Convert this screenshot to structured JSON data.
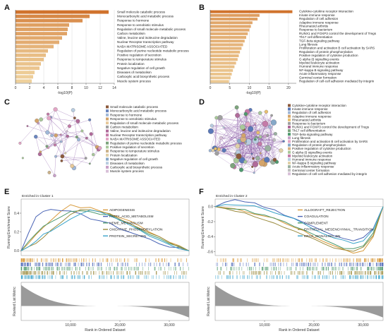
{
  "panels": {
    "A": "A",
    "B": "B",
    "C": "C",
    "D": "D",
    "E": "E",
    "F": "F"
  },
  "chart_data": [
    {
      "panel": "A",
      "type": "bar",
      "orientation": "horizontal",
      "xlabel": "-log10(P)",
      "xlim": [
        0,
        14
      ],
      "xticks": [
        "0",
        "2",
        "4",
        "6",
        "8",
        "10",
        "12",
        "14"
      ],
      "categories": [
        "Small molecule catabolic process",
        "Monocarboxylic acid metabolic process",
        "Response to hormone",
        "Response to xenobiotic stimulus",
        "Regulation of small molecule metabolic process",
        "Carbon metabolism",
        "Valine, leucine and isoleucine degradation",
        "Nuclear Receptor transcription pathway",
        "NABA MATRISOME ASSOCIATED",
        "Regulation of purine nucleotide metabolic process",
        "Positive regulation of secretion",
        "Response to temperature stimulus",
        "Protein localization",
        "Negative regulation of cell growth",
        "Diseases of metabolism",
        "Carboxylic acid biosynthetic process",
        "Muscle system process"
      ],
      "values": [
        13.2,
        10.5,
        9.5,
        7.6,
        7.4,
        7.3,
        6.6,
        6.2,
        5.4,
        4.6,
        4.3,
        4.0,
        3.6,
        3.4,
        2.7,
        2.5,
        2.3
      ]
    },
    {
      "panel": "B",
      "type": "bar",
      "orientation": "horizontal",
      "xlabel": "-log10(P)",
      "xlim": [
        0,
        22
      ],
      "xticks": [
        "0",
        "5",
        "10",
        "15",
        "20"
      ],
      "categories": [
        "Cytokine-cytokine receptor interaction",
        "Innate immune response",
        "Regulation of cell adhesion",
        "Adaptive immune response",
        "Rheumatoid arthritis",
        "Response to bacterium",
        "RUNX1 and FOXP3 control the development of Tregs",
        "Th17 cell differentiation",
        "TGF-beta signaling pathway",
        "Lung fibrosis",
        "Proliferation and activation B cell activation by SARS",
        "Regulation of protein phosphorylation",
        "Positive regulation of cytokine production",
        "G alpha (i) signalling events",
        "Myeloid leukocyte activation",
        "Humoral immune response",
        "NF-kappa B signaling pathway",
        "Acute inflammatory response",
        "Germinal center formation",
        "Regulation of cell-cell adhesion mediated by integrin"
      ],
      "values": [
        21.0,
        12.6,
        12.1,
        10.8,
        10.4,
        10.0,
        9.6,
        9.2,
        8.8,
        8.4,
        8.0,
        7.6,
        7.3,
        7.0,
        6.6,
        6.2,
        5.8,
        5.5,
        5.2,
        4.8
      ]
    },
    {
      "panel": "E",
      "type": "line",
      "subtitle": "Enriched in Cluster 1",
      "ylabel": "Running Enrichment Score",
      "ylabel_bottom": "Ranked List Metric",
      "xlabel": "Rank in Ordered Dataset",
      "xlim": [
        0,
        34000
      ],
      "ylim": [
        -0.05,
        0.55
      ],
      "xticks": [
        "10,000",
        "20,000",
        "30,000"
      ],
      "yticks": [
        "0.0",
        "0.2",
        "0.4"
      ],
      "legend": "top-right",
      "series": [
        {
          "name": "ADIPOGENESIS",
          "color": "#d89a3b",
          "x": [
            0,
            1500,
            3000,
            4500,
            6000,
            8000,
            10000,
            12000,
            14000,
            16000,
            18000,
            20000,
            22000,
            24000,
            26000,
            28000,
            30000,
            32000,
            34000
          ],
          "y": [
            0.0,
            0.08,
            0.17,
            0.26,
            0.33,
            0.42,
            0.49,
            0.47,
            0.45,
            0.42,
            0.39,
            0.36,
            0.31,
            0.26,
            0.21,
            0.15,
            0.1,
            0.05,
            0.0
          ]
        },
        {
          "name": "FATTY_ACID_METABOLISM",
          "color": "#4a64b5",
          "x": [
            0,
            1500,
            3000,
            4500,
            6000,
            8000,
            10000,
            12000,
            14000,
            16000,
            18000,
            20000,
            22000,
            24000,
            26000,
            28000,
            30000,
            32000,
            34000
          ],
          "y": [
            0.0,
            0.2,
            0.36,
            0.42,
            0.45,
            0.44,
            0.41,
            0.38,
            0.35,
            0.32,
            0.28,
            0.24,
            0.2,
            0.16,
            0.12,
            0.08,
            0.05,
            0.02,
            0.0
          ]
        },
        {
          "name": "HEME_METABOLISM",
          "color": "#4f9a6e",
          "x": [
            0,
            1500,
            3000,
            4500,
            6000,
            8000,
            10000,
            12000,
            14000,
            16000,
            18000,
            20000,
            22000,
            24000,
            26000,
            28000,
            30000,
            32000,
            34000
          ],
          "y": [
            0.0,
            0.1,
            0.19,
            0.26,
            0.31,
            0.37,
            0.41,
            0.43,
            0.42,
            0.4,
            0.37,
            0.33,
            0.28,
            0.23,
            0.18,
            0.13,
            0.08,
            0.04,
            0.0
          ]
        },
        {
          "name": "OXIDATIVE_PHOSPHORYLATION",
          "color": "#9a8a3c",
          "x": [
            0,
            1500,
            3000,
            4500,
            6000,
            8000,
            10000,
            12000,
            14000,
            16000,
            18000,
            20000,
            22000,
            24000,
            26000,
            28000,
            30000,
            32000,
            34000
          ],
          "y": [
            0.0,
            0.04,
            0.09,
            0.15,
            0.22,
            0.31,
            0.4,
            0.44,
            0.43,
            0.41,
            0.38,
            0.34,
            0.29,
            0.24,
            0.19,
            0.14,
            0.09,
            0.04,
            0.0
          ]
        },
        {
          "name": "PROTEIN_SECRETION",
          "color": "#3aa3c9",
          "x": [
            0,
            1500,
            3000,
            4500,
            6000,
            8000,
            10000,
            12000,
            14000,
            16000,
            18000,
            20000,
            22000,
            24000,
            26000,
            28000,
            30000,
            32000,
            34000
          ],
          "y": [
            0.0,
            0.05,
            0.11,
            0.17,
            0.22,
            0.28,
            0.33,
            0.38,
            0.42,
            0.4,
            0.36,
            0.32,
            0.27,
            0.22,
            0.17,
            0.12,
            0.07,
            0.03,
            0.0
          ]
        }
      ]
    },
    {
      "panel": "F",
      "type": "line",
      "subtitle": "Enriched in Cluster 2",
      "ylabel": "Running Enrichment Score",
      "ylabel_bottom": "Ranked List Metric",
      "xlabel": "Rank in Ordered Dataset",
      "xlim": [
        0,
        34000
      ],
      "ylim": [
        -0.65,
        0.1
      ],
      "xticks": [
        "10,000",
        "20,000",
        "30,000"
      ],
      "yticks": [
        "0.0",
        "-0.2",
        "-0.4",
        "-0.6"
      ],
      "legend": "top-right",
      "series": [
        {
          "name": "ALLOGRAFT_REJECTION",
          "color": "#d89a3b",
          "x": [
            0,
            2000,
            4000,
            6000,
            8000,
            10000,
            12000,
            14000,
            16000,
            18000,
            20000,
            22000,
            24000,
            26000,
            28000,
            30000,
            32000,
            34000
          ],
          "y": [
            0.0,
            -0.02,
            -0.04,
            -0.06,
            -0.09,
            -0.12,
            -0.16,
            -0.21,
            -0.27,
            -0.33,
            -0.4,
            -0.47,
            -0.53,
            -0.58,
            -0.62,
            -0.58,
            -0.4,
            0.0
          ]
        },
        {
          "name": "COAGULATION",
          "color": "#4a64b5",
          "x": [
            0,
            2000,
            4000,
            6000,
            8000,
            10000,
            12000,
            14000,
            16000,
            18000,
            20000,
            22000,
            24000,
            26000,
            28000,
            30000,
            32000,
            34000
          ],
          "y": [
            0.0,
            0.06,
            0.09,
            0.07,
            0.04,
            0.0,
            -0.05,
            -0.1,
            -0.15,
            -0.21,
            -0.27,
            -0.33,
            -0.39,
            -0.43,
            -0.45,
            -0.42,
            -0.28,
            0.0
          ]
        },
        {
          "name": "COMPLEMENT",
          "color": "#4f9a6e",
          "x": [
            0,
            2000,
            4000,
            6000,
            8000,
            10000,
            12000,
            14000,
            16000,
            18000,
            20000,
            22000,
            24000,
            26000,
            28000,
            30000,
            32000,
            34000
          ],
          "y": [
            0.0,
            -0.01,
            -0.03,
            -0.05,
            -0.08,
            -0.12,
            -0.16,
            -0.21,
            -0.26,
            -0.32,
            -0.38,
            -0.44,
            -0.5,
            -0.55,
            -0.57,
            -0.53,
            -0.36,
            0.0
          ]
        },
        {
          "name": "EPITHELIAL_MESENCHYMAL_TRANSITION",
          "color": "#9a8a3c",
          "x": [
            0,
            2000,
            4000,
            6000,
            8000,
            10000,
            12000,
            14000,
            16000,
            18000,
            20000,
            22000,
            24000,
            26000,
            28000,
            30000,
            32000,
            34000
          ],
          "y": [
            0.0,
            -0.03,
            -0.06,
            -0.09,
            -0.13,
            -0.17,
            -0.22,
            -0.27,
            -0.32,
            -0.38,
            -0.44,
            -0.49,
            -0.54,
            -0.58,
            -0.6,
            -0.55,
            -0.37,
            0.0
          ]
        },
        {
          "name": "KRAS_SIGNALING_DN",
          "color": "#3aa3c9",
          "x": [
            0,
            2000,
            4000,
            6000,
            8000,
            10000,
            12000,
            14000,
            16000,
            18000,
            20000,
            22000,
            24000,
            26000,
            28000,
            30000,
            32000,
            34000
          ],
          "y": [
            0.0,
            0.02,
            0.03,
            0.02,
            0.0,
            -0.03,
            -0.07,
            -0.12,
            -0.17,
            -0.23,
            -0.29,
            -0.35,
            -0.41,
            -0.46,
            -0.49,
            -0.46,
            -0.31,
            0.0
          ]
        }
      ]
    }
  ],
  "networks": {
    "C": {
      "legend": [
        "Small molecule catabolic process",
        "Monocarboxylic acid metabolic process",
        "Response to hormone",
        "Response to xenobiotic stimulus",
        "Regulation of small molecule metabolic process",
        "Carbon metabolism",
        "Valine, leucine and isoleucine degradation",
        "Nuclear Receptor transcription pathway",
        "NABA MATRISOME ASSOCIATED",
        "Regulation of purine nucleotide metabolic process",
        "Positive regulation of secretion",
        "Response to temperature stimulus",
        "Protein localization",
        "Negative regulation of cell growth",
        "Diseases of metabolism",
        "Carboxylic acid biosynthetic process",
        "Muscle system process"
      ],
      "colors": [
        "#8c5a3c",
        "#6a86c0",
        "#9fb7d8",
        "#d4a46a",
        "#e6c89a",
        "#a0a0a0",
        "#b06a9a",
        "#c47aa8",
        "#e3a6c6",
        "#7da47d",
        "#a8c89a",
        "#cbb28a",
        "#e0d0a8",
        "#86a8c8",
        "#b8cce0",
        "#c8a0c8",
        "#d8c0d8"
      ]
    },
    "D": {
      "legend": [
        "Cytokine-cytokine receptor interaction",
        "Innate immune response",
        "Regulation of cell adhesion",
        "Adaptive immune response",
        "Rheumatoid arthritis",
        "Response to bacterium",
        "RUNX1 and FOXP3 control the development of Tregs",
        "Th17 cell differentiation",
        "TGF-beta signaling pathway",
        "Lung fibrosis",
        "Proliferation and activation B cell activation by SARS",
        "Regulation of protein phosphorylation",
        "Positive regulation of cytokine production",
        "G alpha (i) signalling events",
        "Myeloid leukocyte activation",
        "Humoral immune response",
        "NF-kappa B signaling pathway",
        "Acute inflammatory response",
        "Germinal center formation",
        "Regulation of cell-cell adhesion mediated by integrin"
      ],
      "colors": [
        "#8c5a3c",
        "#5a78b8",
        "#9fb7d8",
        "#d4a46a",
        "#e8c070",
        "#a0a0a0",
        "#b06a9a",
        "#7da47d",
        "#4f9a6e",
        "#c8a0c8",
        "#e3a6c6",
        "#86a8c8",
        "#d8b080",
        "#a8c89a",
        "#c47aa8",
        "#b8cce0",
        "#e0d0a8",
        "#9ab0a0",
        "#c0c0c0",
        "#d8c0d8"
      ]
    }
  }
}
